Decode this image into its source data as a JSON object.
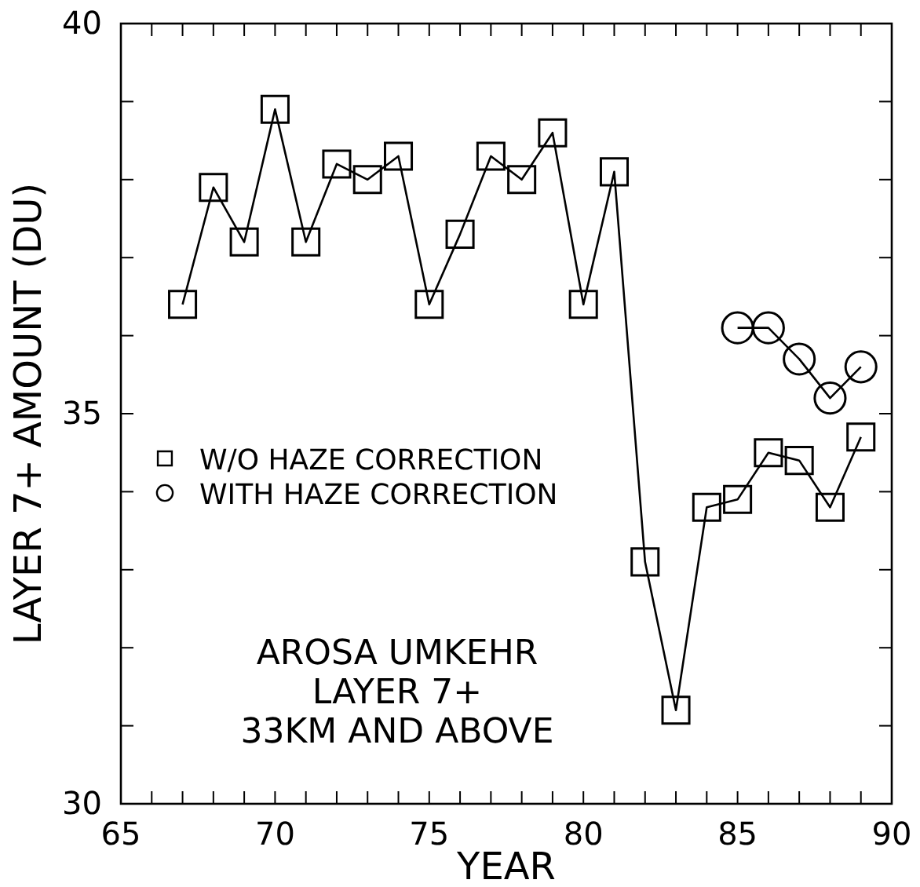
{
  "chart_data": {
    "type": "line",
    "xlabel": "YEAR",
    "ylabel": "LAYER 7+ AMOUNT (DU)",
    "xlim": [
      65,
      90
    ],
    "ylim": [
      30,
      40
    ],
    "xticks": [
      65,
      {
        "value": 66,
        "label": null
      },
      {
        "value": 67,
        "label": null
      },
      {
        "value": 68,
        "label": null
      },
      {
        "value": 69,
        "label": null
      },
      70,
      {
        "value": 71,
        "label": null
      },
      {
        "value": 72,
        "label": null
      },
      {
        "value": 73,
        "label": null
      },
      {
        "value": 74,
        "label": null
      },
      75,
      {
        "value": 76,
        "label": null
      },
      {
        "value": 77,
        "label": null
      },
      {
        "value": 78,
        "label": null
      },
      {
        "value": 79,
        "label": null
      },
      80,
      {
        "value": 81,
        "label": null
      },
      {
        "value": 82,
        "label": null
      },
      {
        "value": 83,
        "label": null
      },
      {
        "value": 84,
        "label": null
      },
      85,
      {
        "value": 86,
        "label": null
      },
      {
        "value": 87,
        "label": null
      },
      {
        "value": 88,
        "label": null
      },
      {
        "value": 89,
        "label": null
      },
      90
    ],
    "yticks": [
      30,
      {
        "value": 31,
        "label": null
      },
      {
        "value": 32,
        "label": null
      },
      {
        "value": 33,
        "label": null
      },
      {
        "value": 34,
        "label": null
      },
      35,
      {
        "value": 36,
        "label": null
      },
      {
        "value": 37,
        "label": null
      },
      {
        "value": 38,
        "label": null
      },
      {
        "value": 39,
        "label": null
      },
      40
    ],
    "grid": false,
    "legend": "left",
    "annotations": [
      "AROSA UMKEHR",
      "LAYER 7+",
      "33KM AND ABOVE"
    ],
    "series": [
      {
        "name": "W/O HAZE CORRECTION",
        "color": "#000000",
        "marker": "square",
        "x": [
          67,
          68,
          69,
          70,
          71,
          72,
          73,
          74,
          75,
          76,
          77,
          78,
          79,
          80,
          81,
          82,
          83,
          84,
          85,
          86,
          87,
          88,
          89
        ],
        "values": [
          36.4,
          37.9,
          37.2,
          38.9,
          37.2,
          38.2,
          38.0,
          38.3,
          36.4,
          37.3,
          38.3,
          38.0,
          38.6,
          36.4,
          38.1,
          33.1,
          31.2,
          33.8,
          33.9,
          34.5,
          34.4,
          33.8,
          34.7
        ]
      },
      {
        "name": "WITH HAZE CORRECTION",
        "color": "#000000",
        "marker": "circle",
        "x": [
          85,
          86,
          87,
          88,
          89
        ],
        "values": [
          36.1,
          36.1,
          35.7,
          35.2,
          35.6
        ]
      }
    ]
  }
}
